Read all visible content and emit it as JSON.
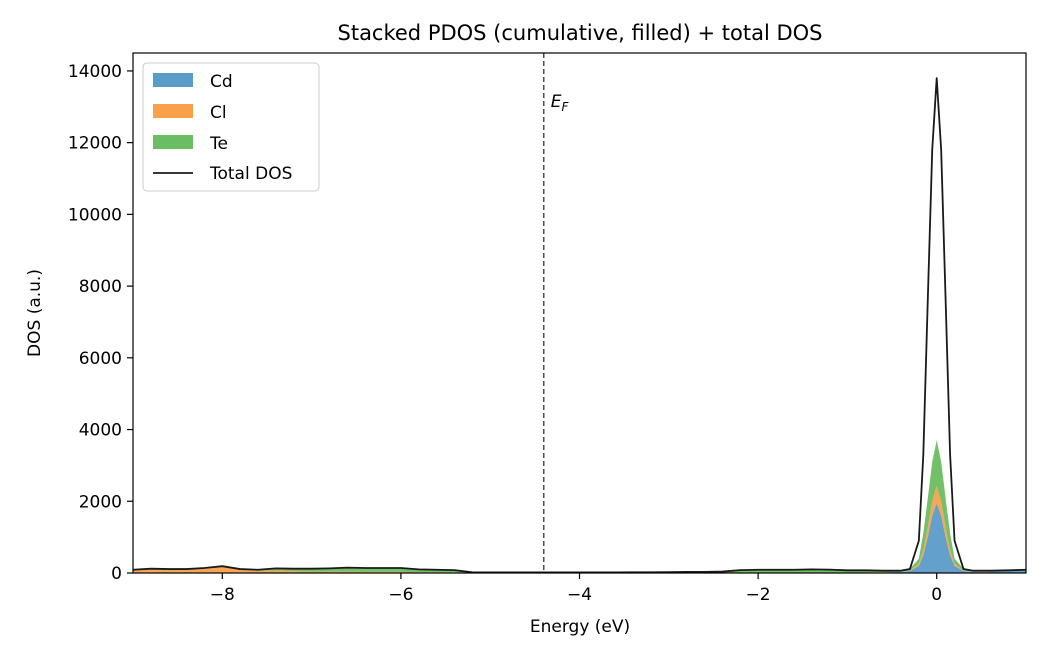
{
  "chart_data": {
    "type": "area",
    "title": "Stacked PDOS (cumulative, filled) + total DOS",
    "xlabel": "Energy (eV)",
    "ylabel": "DOS (a.u.)",
    "xlim": [
      -9,
      1
    ],
    "ylim": [
      0,
      14500
    ],
    "xticks": [
      -8,
      -6,
      -4,
      -2,
      0
    ],
    "xtick_labels": [
      "−8",
      "−6",
      "−4",
      "−2",
      "0"
    ],
    "yticks": [
      0,
      2000,
      4000,
      6000,
      8000,
      10000,
      12000,
      14000
    ],
    "ytick_labels": [
      "0",
      "2000",
      "4000",
      "6000",
      "8000",
      "10000",
      "12000",
      "14000"
    ],
    "grid": false,
    "legend_position": "top-left",
    "x": [
      -9,
      -8.8,
      -8.6,
      -8.4,
      -8.2,
      -8.0,
      -7.8,
      -7.6,
      -7.4,
      -7.2,
      -7.0,
      -6.8,
      -6.6,
      -6.4,
      -6.2,
      -6.0,
      -5.8,
      -5.6,
      -5.4,
      -5.2,
      -5.0,
      -4.8,
      -4.6,
      -4.4,
      -4.2,
      -4.0,
      -3.8,
      -3.6,
      -3.4,
      -3.2,
      -3.0,
      -2.8,
      -2.6,
      -2.4,
      -2.2,
      -2.0,
      -1.8,
      -1.6,
      -1.4,
      -1.2,
      -1.0,
      -0.8,
      -0.6,
      -0.4,
      -0.3,
      -0.2,
      -0.15,
      -0.1,
      -0.05,
      0.0,
      0.05,
      0.1,
      0.15,
      0.2,
      0.3,
      0.4,
      0.6,
      0.8,
      1.0
    ],
    "series": [
      {
        "name": "Cd",
        "color": "#5b9bc8",
        "values": [
          10,
          10,
          10,
          10,
          10,
          10,
          10,
          10,
          10,
          10,
          10,
          10,
          10,
          10,
          10,
          10,
          10,
          10,
          10,
          5,
          5,
          5,
          5,
          5,
          5,
          5,
          5,
          5,
          5,
          5,
          5,
          5,
          5,
          5,
          5,
          5,
          5,
          5,
          5,
          10,
          10,
          10,
          20,
          30,
          60,
          200,
          500,
          1000,
          1600,
          1950,
          1600,
          1000,
          500,
          200,
          60,
          30,
          40,
          60,
          80
        ]
      },
      {
        "name": "Cl",
        "color": "#f9a04b",
        "values": [
          60,
          80,
          70,
          80,
          110,
          160,
          80,
          50,
          60,
          40,
          30,
          30,
          30,
          20,
          20,
          20,
          10,
          10,
          10,
          5,
          5,
          5,
          5,
          5,
          5,
          5,
          5,
          5,
          5,
          5,
          5,
          5,
          5,
          5,
          5,
          5,
          5,
          5,
          5,
          5,
          5,
          5,
          5,
          5,
          10,
          60,
          150,
          280,
          400,
          480,
          400,
          280,
          150,
          60,
          10,
          5,
          5,
          5,
          5
        ]
      },
      {
        "name": "Te",
        "color": "#6abd60",
        "values": [
          20,
          30,
          30,
          20,
          20,
          20,
          20,
          30,
          60,
          70,
          80,
          90,
          110,
          110,
          110,
          110,
          80,
          70,
          60,
          10,
          5,
          5,
          5,
          5,
          5,
          5,
          5,
          5,
          10,
          10,
          15,
          20,
          20,
          30,
          70,
          80,
          80,
          80,
          90,
          80,
          60,
          60,
          40,
          30,
          40,
          140,
          450,
          800,
          1100,
          1270,
          1100,
          800,
          450,
          140,
          40,
          30,
          20,
          10,
          5
        ]
      }
    ],
    "total": {
      "name": "Total DOS",
      "color": "#1a1a1a",
      "values": [
        90,
        120,
        110,
        110,
        140,
        190,
        110,
        90,
        130,
        120,
        120,
        130,
        150,
        140,
        140,
        140,
        100,
        90,
        80,
        20,
        15,
        15,
        15,
        15,
        15,
        15,
        15,
        15,
        20,
        20,
        25,
        30,
        30,
        40,
        80,
        90,
        90,
        90,
        100,
        95,
        75,
        75,
        65,
        65,
        110,
        900,
        3300,
        7600,
        11800,
        13800,
        11800,
        7600,
        3300,
        900,
        110,
        65,
        65,
        75,
        90
      ]
    },
    "vline": {
      "x": -4.4,
      "label_base": "E",
      "label_sub": "F",
      "style": "dashed"
    }
  }
}
